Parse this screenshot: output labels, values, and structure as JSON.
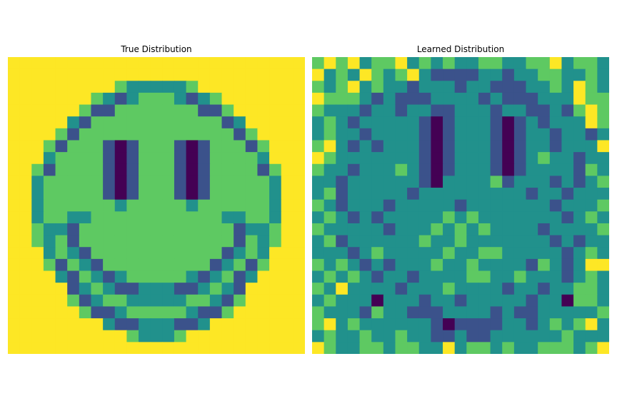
{
  "chart_data": [
    {
      "type": "heatmap",
      "title": "True Distribution",
      "colormap": [
        "#440154",
        "#3b528b",
        "#21918c",
        "#5ec962",
        "#fde725"
      ],
      "grid": false,
      "rows": 25,
      "cols": 25,
      "values": [
        [
          4,
          4,
          4,
          4,
          4,
          4,
          4,
          4,
          4,
          4,
          4,
          4,
          4,
          4,
          4,
          4,
          4,
          4,
          4,
          4,
          4,
          4,
          4,
          4,
          4
        ],
        [
          4,
          4,
          4,
          4,
          4,
          4,
          4,
          4,
          4,
          4,
          4,
          4,
          4,
          4,
          4,
          4,
          4,
          4,
          4,
          4,
          4,
          4,
          4,
          4,
          4
        ],
        [
          4,
          4,
          4,
          4,
          4,
          4,
          4,
          4,
          4,
          3,
          2,
          2,
          2,
          2,
          2,
          3,
          4,
          4,
          4,
          4,
          4,
          4,
          4,
          4,
          4
        ],
        [
          4,
          4,
          4,
          4,
          4,
          4,
          4,
          3,
          2,
          1,
          2,
          3,
          3,
          3,
          2,
          1,
          2,
          3,
          4,
          4,
          4,
          4,
          4,
          4,
          4
        ],
        [
          4,
          4,
          4,
          4,
          4,
          4,
          3,
          1,
          1,
          3,
          3,
          3,
          3,
          3,
          3,
          3,
          1,
          1,
          3,
          4,
          4,
          4,
          4,
          4,
          4
        ],
        [
          4,
          4,
          4,
          4,
          4,
          2,
          1,
          3,
          3,
          3,
          3,
          3,
          3,
          3,
          3,
          3,
          3,
          3,
          1,
          2,
          4,
          4,
          4,
          4,
          4
        ],
        [
          4,
          4,
          4,
          4,
          3,
          1,
          3,
          3,
          3,
          3,
          3,
          3,
          3,
          3,
          3,
          3,
          3,
          3,
          3,
          1,
          3,
          4,
          4,
          4,
          4
        ],
        [
          4,
          4,
          4,
          3,
          1,
          3,
          3,
          3,
          1,
          0,
          1,
          3,
          3,
          3,
          1,
          0,
          1,
          3,
          3,
          3,
          1,
          3,
          4,
          4,
          4
        ],
        [
          4,
          4,
          4,
          2,
          3,
          3,
          3,
          3,
          1,
          0,
          1,
          3,
          3,
          3,
          1,
          0,
          1,
          3,
          3,
          3,
          3,
          2,
          4,
          4,
          4
        ],
        [
          4,
          4,
          3,
          1,
          3,
          3,
          3,
          3,
          1,
          0,
          1,
          3,
          3,
          3,
          1,
          0,
          1,
          3,
          3,
          3,
          3,
          1,
          3,
          4,
          4
        ],
        [
          4,
          4,
          2,
          3,
          3,
          3,
          3,
          3,
          1,
          0,
          1,
          3,
          3,
          3,
          1,
          0,
          1,
          3,
          3,
          3,
          3,
          3,
          2,
          4,
          4
        ],
        [
          4,
          4,
          2,
          3,
          3,
          3,
          3,
          3,
          1,
          0,
          1,
          3,
          3,
          3,
          1,
          0,
          1,
          3,
          3,
          3,
          3,
          3,
          2,
          4,
          4
        ],
        [
          4,
          4,
          2,
          3,
          3,
          3,
          3,
          3,
          3,
          2,
          3,
          3,
          3,
          3,
          3,
          2,
          3,
          3,
          3,
          3,
          3,
          3,
          2,
          4,
          4
        ],
        [
          4,
          4,
          2,
          3,
          3,
          2,
          2,
          3,
          3,
          3,
          3,
          3,
          3,
          3,
          3,
          3,
          3,
          3,
          2,
          2,
          3,
          3,
          2,
          4,
          4
        ],
        [
          4,
          4,
          3,
          2,
          2,
          1,
          3,
          3,
          3,
          3,
          3,
          3,
          3,
          3,
          3,
          3,
          3,
          3,
          3,
          1,
          2,
          2,
          3,
          4,
          4
        ],
        [
          4,
          4,
          3,
          2,
          3,
          1,
          3,
          3,
          3,
          3,
          3,
          3,
          3,
          3,
          3,
          3,
          3,
          3,
          3,
          1,
          3,
          2,
          3,
          4,
          4
        ],
        [
          4,
          4,
          4,
          2,
          3,
          2,
          1,
          3,
          3,
          3,
          3,
          3,
          3,
          3,
          3,
          3,
          3,
          3,
          1,
          2,
          3,
          2,
          4,
          4,
          4
        ],
        [
          4,
          4,
          4,
          3,
          1,
          3,
          2,
          1,
          3,
          3,
          3,
          3,
          3,
          3,
          3,
          3,
          3,
          1,
          2,
          3,
          1,
          3,
          4,
          4,
          4
        ],
        [
          4,
          4,
          4,
          4,
          2,
          1,
          3,
          2,
          1,
          2,
          3,
          3,
          3,
          3,
          3,
          2,
          1,
          2,
          3,
          1,
          2,
          4,
          4,
          4,
          4
        ],
        [
          4,
          4,
          4,
          4,
          4,
          1,
          2,
          3,
          2,
          1,
          1,
          2,
          2,
          2,
          1,
          1,
          2,
          3,
          2,
          1,
          4,
          4,
          4,
          4,
          4
        ],
        [
          4,
          4,
          4,
          4,
          4,
          3,
          1,
          2,
          3,
          3,
          2,
          2,
          2,
          2,
          2,
          3,
          3,
          2,
          1,
          3,
          4,
          4,
          4,
          4,
          4
        ],
        [
          4,
          4,
          4,
          4,
          4,
          4,
          3,
          1,
          1,
          2,
          3,
          3,
          3,
          3,
          3,
          2,
          1,
          1,
          3,
          4,
          4,
          4,
          4,
          4,
          4
        ],
        [
          4,
          4,
          4,
          4,
          4,
          4,
          4,
          4,
          2,
          1,
          1,
          2,
          2,
          2,
          1,
          1,
          2,
          4,
          4,
          4,
          4,
          4,
          4,
          4,
          4
        ],
        [
          4,
          4,
          4,
          4,
          4,
          4,
          4,
          4,
          4,
          4,
          3,
          2,
          2,
          2,
          3,
          4,
          4,
          4,
          4,
          4,
          4,
          4,
          4,
          4,
          4
        ],
        [
          4,
          4,
          4,
          4,
          4,
          4,
          4,
          4,
          4,
          4,
          4,
          4,
          4,
          4,
          4,
          4,
          4,
          4,
          4,
          4,
          4,
          4,
          4,
          4,
          4
        ]
      ]
    },
    {
      "type": "heatmap",
      "title": "Learned Distribution",
      "colormap": [
        "#440154",
        "#3b528b",
        "#21918c",
        "#5ec962",
        "#fde725"
      ],
      "grid": false,
      "rows": 25,
      "cols": 25,
      "values": [
        [
          3,
          4,
          3,
          4,
          2,
          3,
          3,
          4,
          2,
          3,
          2,
          3,
          2,
          2,
          3,
          3,
          2,
          2,
          3,
          3,
          4,
          2,
          3,
          3,
          2
        ],
        [
          4,
          2,
          3,
          2,
          4,
          3,
          2,
          3,
          4,
          2,
          1,
          1,
          1,
          1,
          2,
          2,
          1,
          2,
          2,
          3,
          3,
          2,
          2,
          3,
          2
        ],
        [
          3,
          2,
          3,
          4,
          2,
          3,
          2,
          2,
          1,
          2,
          2,
          2,
          1,
          2,
          2,
          1,
          1,
          1,
          2,
          2,
          3,
          2,
          4,
          3,
          2
        ],
        [
          4,
          3,
          3,
          3,
          2,
          1,
          2,
          1,
          1,
          1,
          2,
          2,
          2,
          2,
          1,
          2,
          1,
          1,
          1,
          2,
          2,
          2,
          4,
          3,
          3
        ],
        [
          3,
          2,
          2,
          2,
          1,
          2,
          2,
          1,
          2,
          2,
          1,
          1,
          2,
          2,
          2,
          1,
          2,
          2,
          1,
          1,
          2,
          1,
          3,
          4,
          3
        ],
        [
          2,
          3,
          2,
          1,
          2,
          2,
          2,
          2,
          2,
          1,
          0,
          1,
          2,
          2,
          2,
          1,
          0,
          1,
          2,
          1,
          2,
          2,
          2,
          4,
          3
        ],
        [
          2,
          3,
          2,
          2,
          1,
          2,
          2,
          2,
          2,
          1,
          0,
          1,
          2,
          2,
          2,
          1,
          0,
          1,
          2,
          2,
          1,
          2,
          2,
          1,
          2
        ],
        [
          3,
          4,
          2,
          1,
          2,
          1,
          2,
          2,
          2,
          1,
          0,
          1,
          2,
          2,
          2,
          1,
          0,
          1,
          2,
          2,
          1,
          2,
          2,
          2,
          4
        ],
        [
          4,
          3,
          2,
          2,
          2,
          2,
          2,
          2,
          2,
          1,
          0,
          1,
          2,
          2,
          2,
          1,
          0,
          1,
          2,
          3,
          2,
          2,
          1,
          2,
          2
        ],
        [
          3,
          2,
          2,
          1,
          2,
          2,
          2,
          3,
          2,
          1,
          0,
          1,
          2,
          2,
          2,
          1,
          0,
          1,
          2,
          2,
          2,
          2,
          1,
          3,
          2
        ],
        [
          2,
          2,
          1,
          2,
          2,
          2,
          2,
          2,
          2,
          1,
          0,
          2,
          2,
          2,
          2,
          3,
          1,
          2,
          2,
          2,
          1,
          2,
          1,
          2,
          3
        ],
        [
          2,
          3,
          1,
          2,
          2,
          2,
          2,
          2,
          1,
          2,
          2,
          2,
          2,
          2,
          2,
          2,
          2,
          2,
          1,
          2,
          2,
          1,
          2,
          2,
          2
        ],
        [
          3,
          2,
          1,
          2,
          2,
          2,
          1,
          2,
          2,
          2,
          2,
          2,
          1,
          2,
          2,
          2,
          2,
          2,
          2,
          2,
          1,
          2,
          2,
          2,
          3
        ],
        [
          2,
          3,
          2,
          1,
          2,
          1,
          2,
          2,
          2,
          2,
          2,
          3,
          2,
          3,
          2,
          2,
          2,
          2,
          2,
          2,
          2,
          1,
          2,
          3,
          2
        ],
        [
          3,
          2,
          2,
          2,
          2,
          2,
          1,
          2,
          2,
          2,
          3,
          2,
          3,
          2,
          3,
          2,
          2,
          2,
          2,
          1,
          2,
          2,
          2,
          2,
          3
        ],
        [
          2,
          3,
          1,
          2,
          2,
          2,
          2,
          2,
          2,
          3,
          2,
          2,
          3,
          2,
          2,
          2,
          2,
          2,
          2,
          2,
          1,
          2,
          1,
          2,
          2
        ],
        [
          2,
          2,
          2,
          1,
          2,
          3,
          2,
          2,
          2,
          2,
          2,
          3,
          2,
          2,
          3,
          3,
          2,
          2,
          2,
          2,
          2,
          1,
          2,
          3,
          2
        ],
        [
          3,
          2,
          3,
          2,
          1,
          2,
          1,
          2,
          2,
          2,
          3,
          2,
          2,
          3,
          2,
          2,
          2,
          2,
          1,
          3,
          2,
          1,
          2,
          4,
          4
        ],
        [
          2,
          3,
          2,
          3,
          2,
          1,
          2,
          2,
          1,
          2,
          2,
          2,
          2,
          3,
          3,
          2,
          2,
          3,
          2,
          2,
          2,
          1,
          2,
          3,
          2
        ],
        [
          3,
          2,
          4,
          2,
          2,
          2,
          2,
          1,
          2,
          2,
          2,
          3,
          2,
          2,
          2,
          2,
          1,
          2,
          2,
          1,
          2,
          2,
          3,
          3,
          2
        ],
        [
          2,
          3,
          2,
          2,
          2,
          0,
          2,
          2,
          2,
          1,
          2,
          2,
          1,
          2,
          2,
          2,
          2,
          2,
          1,
          2,
          2,
          0,
          3,
          3,
          2
        ],
        [
          3,
          2,
          2,
          2,
          1,
          3,
          2,
          2,
          1,
          1,
          1,
          2,
          2,
          2,
          2,
          1,
          2,
          1,
          1,
          2,
          2,
          2,
          2,
          2,
          3
        ],
        [
          3,
          4,
          2,
          3,
          2,
          2,
          2,
          2,
          2,
          2,
          1,
          0,
          1,
          1,
          1,
          1,
          2,
          2,
          1,
          2,
          3,
          2,
          3,
          4,
          2
        ],
        [
          2,
          3,
          2,
          2,
          3,
          2,
          2,
          3,
          2,
          2,
          1,
          1,
          2,
          1,
          1,
          2,
          2,
          2,
          2,
          2,
          2,
          3,
          2,
          2,
          2
        ],
        [
          4,
          3,
          2,
          2,
          3,
          3,
          2,
          3,
          3,
          2,
          2,
          4,
          2,
          3,
          3,
          2,
          3,
          2,
          2,
          3,
          3,
          3,
          2,
          3,
          4
        ]
      ]
    }
  ]
}
